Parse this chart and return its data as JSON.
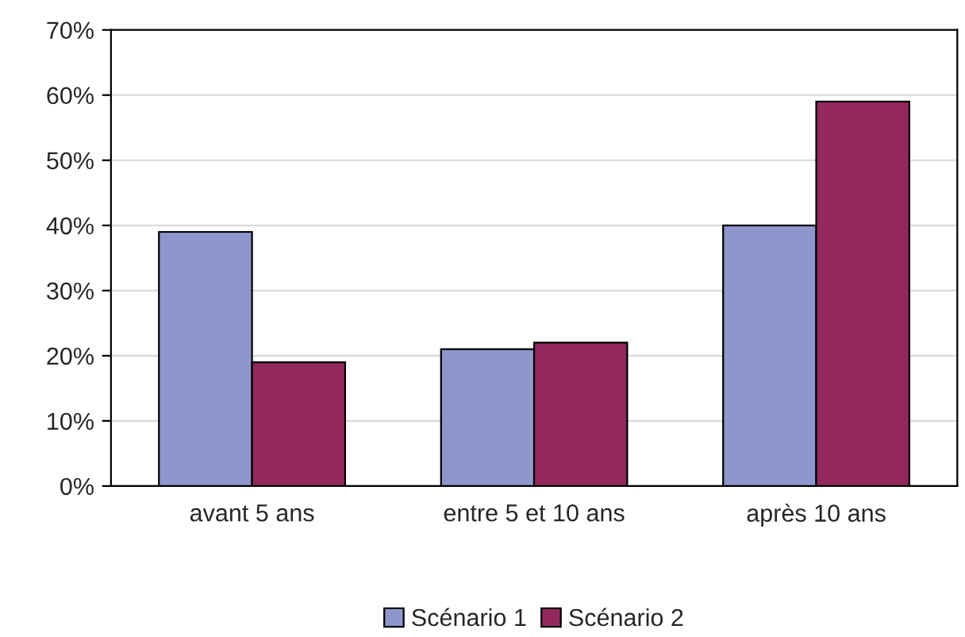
{
  "chart_data": {
    "type": "bar",
    "categories": [
      "avant 5 ans",
      "entre 5 et 10 ans",
      "après 10 ans"
    ],
    "series": [
      {
        "name": "Scénario 1",
        "color": "#8e96cc",
        "values": [
          39,
          21,
          40
        ]
      },
      {
        "name": "Scénario 2",
        "color": "#93285f",
        "values": [
          19,
          22,
          59
        ]
      }
    ],
    "ylim": [
      0,
      70
    ],
    "yticks": [
      {
        "value": 0,
        "label": "0%"
      },
      {
        "value": 10,
        "label": "10%"
      },
      {
        "value": 20,
        "label": "20%"
      },
      {
        "value": 30,
        "label": "30%"
      },
      {
        "value": 40,
        "label": "40%"
      },
      {
        "value": 50,
        "label": "50%"
      },
      {
        "value": 60,
        "label": "60%"
      },
      {
        "value": 70,
        "label": "70%"
      }
    ],
    "grid": "y",
    "legend": "bottom"
  }
}
